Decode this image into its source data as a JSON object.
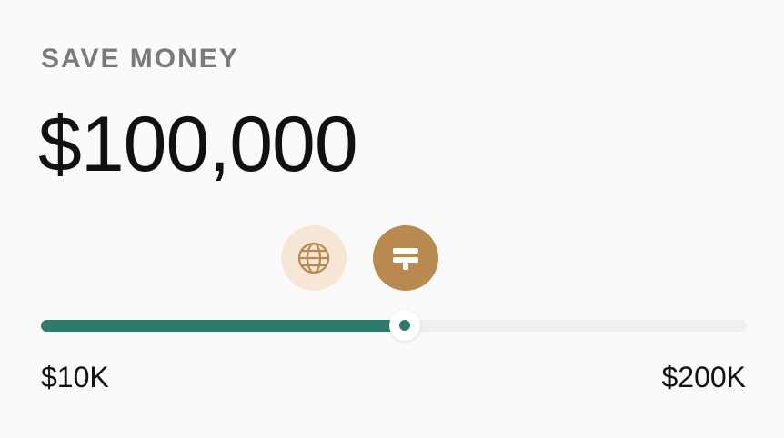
{
  "header": {
    "eyebrow": "SAVE MONEY",
    "amount": "$100,000"
  },
  "icons": [
    {
      "name": "globe-icon"
    },
    {
      "name": "credit-card-icon"
    }
  ],
  "slider": {
    "value_fraction": 0.516,
    "min_label": "$10K",
    "max_label": "$200K"
  },
  "colors": {
    "accent": "#2f7a6c",
    "track": "#efefef",
    "globe_bg": "#f5e6d6",
    "card_bg": "#b88a4f"
  }
}
